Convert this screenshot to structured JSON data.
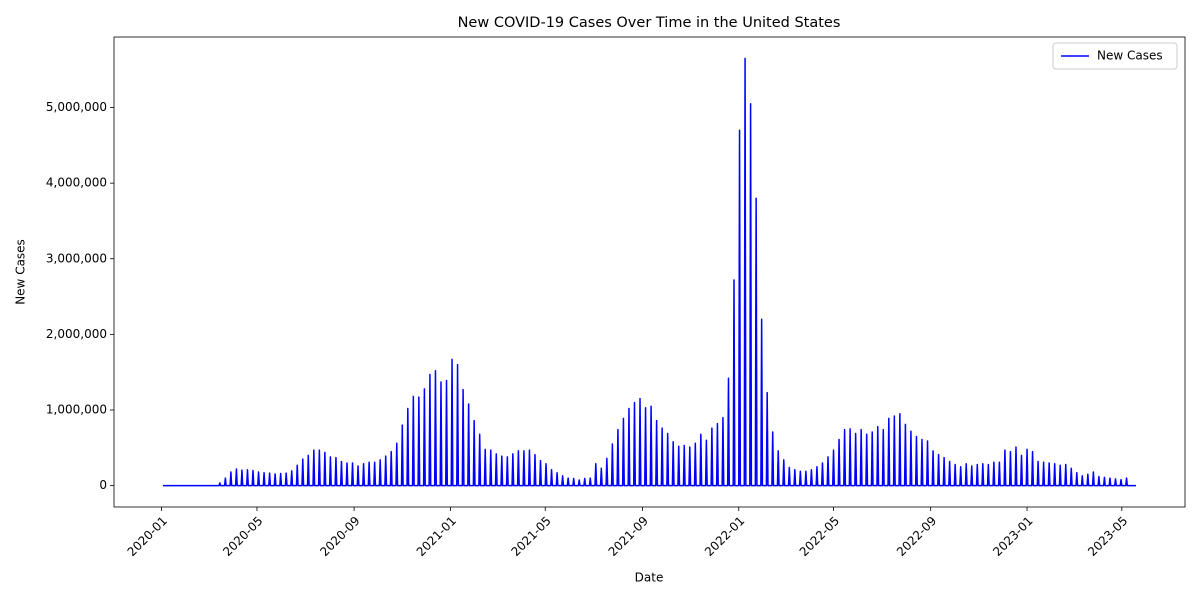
{
  "chart_data": {
    "type": "line",
    "title": "New COVID-19 Cases Over Time in the United States",
    "x_label": "Date",
    "y_label": "New Cases",
    "legend": "upper right",
    "xlim": [
      "2019-11-02",
      "2023-07-20"
    ],
    "xticks": [
      {
        "value": "2020-01-01",
        "label": "2020-01"
      },
      {
        "value": "2020-05-01",
        "label": "2020-05"
      },
      {
        "value": "2020-09-01",
        "label": "2020-09"
      },
      {
        "value": "2021-01-01",
        "label": "2021-01"
      },
      {
        "value": "2021-05-01",
        "label": "2021-05"
      },
      {
        "value": "2021-09-01",
        "label": "2021-09"
      },
      {
        "value": "2022-01-01",
        "label": "2022-01"
      },
      {
        "value": "2022-05-01",
        "label": "2022-05"
      },
      {
        "value": "2022-09-01",
        "label": "2022-09"
      },
      {
        "value": "2023-01-01",
        "label": "2023-01"
      },
      {
        "value": "2023-05-01",
        "label": "2023-05"
      }
    ],
    "ylim": [
      -282500,
      5932500
    ],
    "yticks": [
      0,
      {
        "value": 1000000,
        "label": "1,000,000"
      },
      {
        "value": 2000000,
        "label": "2,000,000"
      },
      {
        "value": 3000000,
        "label": "3,000,000"
      },
      {
        "value": 4000000,
        "label": "4,000,000"
      },
      {
        "value": 5000000,
        "label": "5,000,000"
      }
    ],
    "x": [
      "2020-01-03",
      "2020-03-14",
      "2020-03-15",
      "2020-03-16",
      "2020-03-21",
      "2020-03-22",
      "2020-03-23",
      "2020-03-28",
      "2020-03-29",
      "2020-03-30",
      "2020-04-04",
      "2020-04-05",
      "2020-04-06",
      "2020-04-11",
      "2020-04-12",
      "2020-04-13",
      "2020-04-18",
      "2020-04-19",
      "2020-04-20",
      "2020-04-25",
      "2020-04-26",
      "2020-04-27",
      "2020-05-02",
      "2020-05-03",
      "2020-05-04",
      "2020-05-09",
      "2020-05-10",
      "2020-05-11",
      "2020-05-16",
      "2020-05-17",
      "2020-05-18",
      "2020-05-23",
      "2020-05-24",
      "2020-05-25",
      "2020-05-30",
      "2020-05-31",
      "2020-06-01",
      "2020-06-06",
      "2020-06-07",
      "2020-06-08",
      "2020-06-13",
      "2020-06-14",
      "2020-06-15",
      "2020-06-20",
      "2020-06-21",
      "2020-06-22",
      "2020-06-27",
      "2020-06-28",
      "2020-06-29",
      "2020-07-04",
      "2020-07-05",
      "2020-07-06",
      "2020-07-11",
      "2020-07-12",
      "2020-07-13",
      "2020-07-18",
      "2020-07-19",
      "2020-07-20",
      "2020-07-25",
      "2020-07-26",
      "2020-07-27",
      "2020-08-01",
      "2020-08-02",
      "2020-08-03",
      "2020-08-08",
      "2020-08-09",
      "2020-08-10",
      "2020-08-15",
      "2020-08-16",
      "2020-08-17",
      "2020-08-22",
      "2020-08-23",
      "2020-08-24",
      "2020-08-29",
      "2020-08-30",
      "2020-08-31",
      "2020-09-05",
      "2020-09-06",
      "2020-09-07",
      "2020-09-12",
      "2020-09-13",
      "2020-09-14",
      "2020-09-19",
      "2020-09-20",
      "2020-09-21",
      "2020-09-26",
      "2020-09-27",
      "2020-09-28",
      "2020-10-03",
      "2020-10-04",
      "2020-10-05",
      "2020-10-10",
      "2020-10-11",
      "2020-10-12",
      "2020-10-17",
      "2020-10-18",
      "2020-10-19",
      "2020-10-24",
      "2020-10-25",
      "2020-10-26",
      "2020-10-31",
      "2020-11-01",
      "2020-11-02",
      "2020-11-07",
      "2020-11-08",
      "2020-11-09",
      "2020-11-14",
      "2020-11-15",
      "2020-11-16",
      "2020-11-21",
      "2020-11-22",
      "2020-11-23",
      "2020-11-28",
      "2020-11-29",
      "2020-11-30",
      "2020-12-05",
      "2020-12-06",
      "2020-12-07",
      "2020-12-12",
      "2020-12-13",
      "2020-12-14",
      "2020-12-19",
      "2020-12-20",
      "2020-12-21",
      "2020-12-26",
      "2020-12-27",
      "2020-12-28",
      "2021-01-02",
      "2021-01-03",
      "2021-01-04",
      "2021-01-09",
      "2021-01-10",
      "2021-01-11",
      "2021-01-16",
      "2021-01-17",
      "2021-01-18",
      "2021-01-23",
      "2021-01-24",
      "2021-01-25",
      "2021-01-30",
      "2021-01-31",
      "2021-02-01",
      "2021-02-06",
      "2021-02-07",
      "2021-02-08",
      "2021-02-13",
      "2021-02-14",
      "2021-02-15",
      "2021-02-20",
      "2021-02-21",
      "2021-02-22",
      "2021-02-27",
      "2021-02-28",
      "2021-03-01",
      "2021-03-06",
      "2021-03-07",
      "2021-03-08",
      "2021-03-13",
      "2021-03-14",
      "2021-03-15",
      "2021-03-20",
      "2021-03-21",
      "2021-03-22",
      "2021-03-27",
      "2021-03-28",
      "2021-03-29",
      "2021-04-03",
      "2021-04-04",
      "2021-04-05",
      "2021-04-10",
      "2021-04-11",
      "2021-04-12",
      "2021-04-17",
      "2021-04-18",
      "2021-04-19",
      "2021-04-24",
      "2021-04-25",
      "2021-04-26",
      "2021-05-01",
      "2021-05-02",
      "2021-05-03",
      "2021-05-08",
      "2021-05-09",
      "2021-05-10",
      "2021-05-15",
      "2021-05-16",
      "2021-05-17",
      "2021-05-22",
      "2021-05-23",
      "2021-05-24",
      "2021-05-29",
      "2021-05-30",
      "2021-05-31",
      "2021-06-05",
      "2021-06-06",
      "2021-06-07",
      "2021-06-12",
      "2021-06-13",
      "2021-06-14",
      "2021-06-19",
      "2021-06-20",
      "2021-06-21",
      "2021-06-26",
      "2021-06-27",
      "2021-06-28",
      "2021-07-03",
      "2021-07-04",
      "2021-07-05",
      "2021-07-10",
      "2021-07-11",
      "2021-07-12",
      "2021-07-17",
      "2021-07-18",
      "2021-07-19",
      "2021-07-24",
      "2021-07-25",
      "2021-07-26",
      "2021-07-31",
      "2021-08-01",
      "2021-08-02",
      "2021-08-07",
      "2021-08-08",
      "2021-08-09",
      "2021-08-14",
      "2021-08-15",
      "2021-08-16",
      "2021-08-21",
      "2021-08-22",
      "2021-08-23",
      "2021-08-28",
      "2021-08-29",
      "2021-08-30",
      "2021-09-04",
      "2021-09-05",
      "2021-09-06",
      "2021-09-11",
      "2021-09-12",
      "2021-09-13",
      "2021-09-18",
      "2021-09-19",
      "2021-09-20",
      "2021-09-25",
      "2021-09-26",
      "2021-09-27",
      "2021-10-02",
      "2021-10-03",
      "2021-10-04",
      "2021-10-09",
      "2021-10-10",
      "2021-10-11",
      "2021-10-16",
      "2021-10-17",
      "2021-10-18",
      "2021-10-23",
      "2021-10-24",
      "2021-10-25",
      "2021-10-30",
      "2021-10-31",
      "2021-11-01",
      "2021-11-06",
      "2021-11-07",
      "2021-11-08",
      "2021-11-13",
      "2021-11-14",
      "2021-11-15",
      "2021-11-20",
      "2021-11-21",
      "2021-11-22",
      "2021-11-27",
      "2021-11-28",
      "2021-11-29",
      "2021-12-04",
      "2021-12-05",
      "2021-12-06",
      "2021-12-11",
      "2021-12-12",
      "2021-12-13",
      "2021-12-18",
      "2021-12-19",
      "2021-12-20",
      "2021-12-25",
      "2021-12-26",
      "2021-12-27",
      "2022-01-01",
      "2022-01-02",
      "2022-01-03",
      "2022-01-08",
      "2022-01-09",
      "2022-01-10",
      "2022-01-15",
      "2022-01-16",
      "2022-01-17",
      "2022-01-22",
      "2022-01-23",
      "2022-01-24",
      "2022-01-29",
      "2022-01-30",
      "2022-01-31",
      "2022-02-05",
      "2022-02-06",
      "2022-02-07",
      "2022-02-12",
      "2022-02-13",
      "2022-02-14",
      "2022-02-19",
      "2022-02-20",
      "2022-02-21",
      "2022-02-26",
      "2022-02-27",
      "2022-02-28",
      "2022-03-05",
      "2022-03-06",
      "2022-03-07",
      "2022-03-12",
      "2022-03-13",
      "2022-03-14",
      "2022-03-19",
      "2022-03-20",
      "2022-03-21",
      "2022-03-26",
      "2022-03-27",
      "2022-03-28",
      "2022-04-02",
      "2022-04-03",
      "2022-04-04",
      "2022-04-09",
      "2022-04-10",
      "2022-04-11",
      "2022-04-16",
      "2022-04-17",
      "2022-04-18",
      "2022-04-23",
      "2022-04-24",
      "2022-04-25",
      "2022-04-30",
      "2022-05-01",
      "2022-05-02",
      "2022-05-07",
      "2022-05-08",
      "2022-05-09",
      "2022-05-14",
      "2022-05-15",
      "2022-05-16",
      "2022-05-21",
      "2022-05-22",
      "2022-05-23",
      "2022-05-28",
      "2022-05-29",
      "2022-05-30",
      "2022-06-04",
      "2022-06-05",
      "2022-06-06",
      "2022-06-11",
      "2022-06-12",
      "2022-06-13",
      "2022-06-18",
      "2022-06-19",
      "2022-06-20",
      "2022-06-25",
      "2022-06-26",
      "2022-06-27",
      "2022-07-02",
      "2022-07-03",
      "2022-07-04",
      "2022-07-09",
      "2022-07-10",
      "2022-07-11",
      "2022-07-16",
      "2022-07-17",
      "2022-07-18",
      "2022-07-23",
      "2022-07-24",
      "2022-07-25",
      "2022-07-30",
      "2022-07-31",
      "2022-08-01",
      "2022-08-06",
      "2022-08-07",
      "2022-08-08",
      "2022-08-13",
      "2022-08-14",
      "2022-08-15",
      "2022-08-20",
      "2022-08-21",
      "2022-08-22",
      "2022-08-27",
      "2022-08-28",
      "2022-08-29",
      "2022-09-03",
      "2022-09-04",
      "2022-09-05",
      "2022-09-10",
      "2022-09-11",
      "2022-09-12",
      "2022-09-17",
      "2022-09-18",
      "2022-09-19",
      "2022-09-24",
      "2022-09-25",
      "2022-09-26",
      "2022-10-01",
      "2022-10-02",
      "2022-10-03",
      "2022-10-08",
      "2022-10-09",
      "2022-10-10",
      "2022-10-15",
      "2022-10-16",
      "2022-10-17",
      "2022-10-22",
      "2022-10-23",
      "2022-10-24",
      "2022-10-29",
      "2022-10-30",
      "2022-10-31",
      "2022-11-05",
      "2022-11-06",
      "2022-11-07",
      "2022-11-12",
      "2022-11-13",
      "2022-11-14",
      "2022-11-19",
      "2022-11-20",
      "2022-11-21",
      "2022-11-26",
      "2022-11-27",
      "2022-11-28",
      "2022-12-03",
      "2022-12-04",
      "2022-12-05",
      "2022-12-10",
      "2022-12-11",
      "2022-12-12",
      "2022-12-17",
      "2022-12-18",
      "2022-12-19",
      "2022-12-24",
      "2022-12-25",
      "2022-12-26",
      "2022-12-31",
      "2023-01-01",
      "2023-01-02",
      "2023-01-07",
      "2023-01-08",
      "2023-01-09",
      "2023-01-14",
      "2023-01-15",
      "2023-01-16",
      "2023-01-21",
      "2023-01-22",
      "2023-01-23",
      "2023-01-28",
      "2023-01-29",
      "2023-01-30",
      "2023-02-04",
      "2023-02-05",
      "2023-02-06",
      "2023-02-11",
      "2023-02-12",
      "2023-02-13",
      "2023-02-18",
      "2023-02-19",
      "2023-02-20",
      "2023-02-25",
      "2023-02-26",
      "2023-02-27",
      "2023-03-04",
      "2023-03-05",
      "2023-03-06",
      "2023-03-11",
      "2023-03-12",
      "2023-03-13",
      "2023-03-18",
      "2023-03-19",
      "2023-03-20",
      "2023-03-25",
      "2023-03-26",
      "2023-03-27",
      "2023-04-01",
      "2023-04-02",
      "2023-04-03",
      "2023-04-08",
      "2023-04-09",
      "2023-04-10",
      "2023-04-15",
      "2023-04-16",
      "2023-04-17",
      "2023-04-22",
      "2023-04-23",
      "2023-04-24",
      "2023-04-29",
      "2023-04-30",
      "2023-05-01",
      "2023-05-06",
      "2023-05-07",
      "2023-05-08",
      "2023-05-19"
    ],
    "series": [
      {
        "name": "New Cases",
        "color": "#0000ff",
        "values": [
          0,
          0,
          35000,
          0,
          0,
          100000,
          0,
          0,
          180000,
          0,
          0,
          220000,
          0,
          0,
          205000,
          0,
          0,
          210000,
          0,
          0,
          200000,
          0,
          0,
          180000,
          0,
          0,
          170000,
          0,
          0,
          165000,
          0,
          0,
          155000,
          0,
          0,
          160000,
          0,
          0,
          165000,
          0,
          0,
          195000,
          0,
          0,
          270000,
          0,
          0,
          350000,
          0,
          0,
          400000,
          0,
          0,
          470000,
          0,
          0,
          470000,
          0,
          0,
          440000,
          0,
          0,
          380000,
          0,
          0,
          370000,
          0,
          0,
          320000,
          0,
          0,
          300000,
          0,
          0,
          300000,
          0,
          0,
          260000,
          0,
          0,
          290000,
          0,
          0,
          310000,
          0,
          0,
          310000,
          0,
          0,
          340000,
          0,
          0,
          390000,
          0,
          0,
          450000,
          0,
          0,
          560000,
          0,
          0,
          800000,
          0,
          0,
          1020000,
          0,
          0,
          1180000,
          0,
          0,
          1170000,
          0,
          0,
          1280000,
          0,
          0,
          1470000,
          0,
          0,
          1520000,
          0,
          0,
          1370000,
          0,
          0,
          1390000,
          0,
          0,
          1670000,
          0,
          0,
          1600000,
          0,
          0,
          1270000,
          0,
          0,
          1080000,
          0,
          0,
          860000,
          0,
          0,
          680000,
          0,
          0,
          480000,
          0,
          0,
          470000,
          0,
          0,
          420000,
          0,
          0,
          390000,
          0,
          0,
          380000,
          0,
          0,
          420000,
          0,
          0,
          460000,
          0,
          0,
          460000,
          0,
          0,
          470000,
          0,
          0,
          410000,
          0,
          0,
          330000,
          0,
          0,
          290000,
          0,
          0,
          210000,
          0,
          0,
          170000,
          0,
          0,
          130000,
          0,
          0,
          100000,
          0,
          0,
          95000,
          0,
          0,
          75000,
          0,
          0,
          95000,
          0,
          0,
          100000,
          0,
          0,
          290000,
          0,
          0,
          230000,
          0,
          0,
          360000,
          0,
          0,
          550000,
          0,
          0,
          740000,
          0,
          0,
          890000,
          0,
          0,
          1020000,
          0,
          0,
          1100000,
          0,
          0,
          1150000,
          0,
          0,
          1030000,
          0,
          0,
          1050000,
          0,
          0,
          860000,
          0,
          0,
          760000,
          0,
          0,
          690000,
          0,
          0,
          580000,
          0,
          0,
          520000,
          0,
          0,
          530000,
          0,
          0,
          510000,
          0,
          0,
          560000,
          0,
          0,
          680000,
          0,
          0,
          600000,
          0,
          0,
          760000,
          0,
          0,
          820000,
          0,
          0,
          900000,
          0,
          0,
          1420000,
          0,
          0,
          2720000,
          0,
          0,
          4700000,
          0,
          0,
          5650000,
          0,
          0,
          5050000,
          0,
          0,
          3800000,
          0,
          0,
          2200000,
          0,
          0,
          1230000,
          0,
          0,
          710000,
          0,
          0,
          460000,
          0,
          0,
          340000,
          0,
          0,
          240000,
          0,
          0,
          210000,
          0,
          0,
          190000,
          0,
          0,
          190000,
          0,
          0,
          210000,
          0,
          0,
          250000,
          0,
          0,
          300000,
          0,
          0,
          380000,
          0,
          0,
          470000,
          0,
          0,
          610000,
          0,
          0,
          740000,
          0,
          0,
          750000,
          0,
          0,
          690000,
          0,
          0,
          740000,
          0,
          0,
          680000,
          0,
          0,
          710000,
          0,
          0,
          780000,
          0,
          0,
          740000,
          0,
          0,
          890000,
          0,
          0,
          920000,
          0,
          0,
          950000,
          0,
          0,
          810000,
          0,
          0,
          720000,
          0,
          0,
          650000,
          0,
          0,
          610000,
          0,
          0,
          590000,
          0,
          0,
          460000,
          0,
          0,
          410000,
          0,
          0,
          370000,
          0,
          0,
          320000,
          0,
          0,
          280000,
          0,
          0,
          250000,
          0,
          0,
          290000,
          0,
          0,
          260000,
          0,
          0,
          280000,
          0,
          0,
          290000,
          0,
          0,
          280000,
          0,
          0,
          310000,
          0,
          0,
          310000,
          0,
          0,
          470000,
          0,
          0,
          450000,
          0,
          0,
          510000,
          0,
          0,
          400000,
          0,
          0,
          480000,
          0,
          0,
          450000,
          0,
          0,
          320000,
          0,
          0,
          310000,
          0,
          0,
          300000,
          0,
          0,
          290000,
          0,
          0,
          270000,
          0,
          0,
          280000,
          0,
          0,
          230000,
          0,
          0,
          170000,
          0,
          0,
          130000,
          0,
          0,
          150000,
          0,
          0,
          180000,
          0,
          0,
          120000,
          0,
          0,
          110000,
          0,
          0,
          100000,
          0,
          0,
          90000,
          0,
          0,
          80000,
          0,
          0,
          100000,
          0,
          0
        ]
      }
    ]
  }
}
